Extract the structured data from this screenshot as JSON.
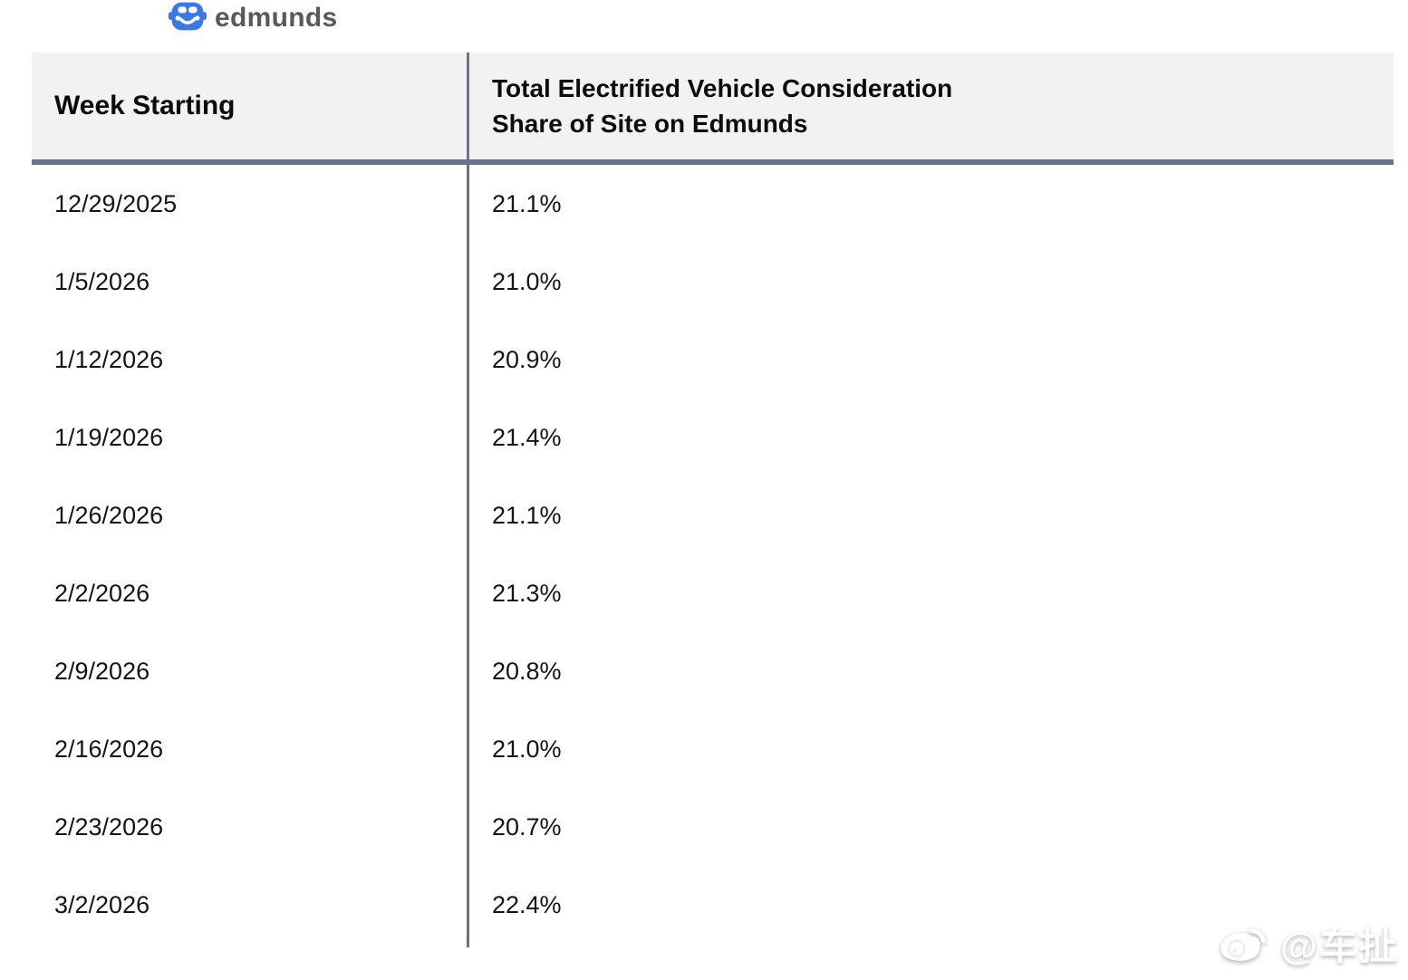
{
  "brand": {
    "name": "edmunds",
    "logo_icon": "car-icon",
    "logo_color": "#3B78E5",
    "wordmark_color": "#58595B"
  },
  "colors": {
    "background": "#FFFFFF",
    "header_bg": "#F2F2F2",
    "table_line": "#68748A",
    "row_text": "#141414",
    "watermark": "#FFFFFF"
  },
  "chart_data": {
    "type": "table",
    "title": "Total Electrified Vehicle Consideration Share of Site on Edmunds",
    "header": {
      "col1": "Week Starting",
      "col2_line1": "Total Electrified Vehicle Consideration",
      "col2_line2": "Share of Site on Edmunds"
    },
    "columns": [
      "Week Starting",
      "Total Electrified Vehicle Consideration Share of Site on Edmunds"
    ],
    "rows": [
      {
        "week_starting": "12/29/2025",
        "share": "21.1%",
        "share_value": 21.1
      },
      {
        "week_starting": "1/5/2026",
        "share": "21.0%",
        "share_value": 21.0
      },
      {
        "week_starting": "1/12/2026",
        "share": "20.9%",
        "share_value": 20.9
      },
      {
        "week_starting": "1/19/2026",
        "share": "21.4%",
        "share_value": 21.4
      },
      {
        "week_starting": "1/26/2026",
        "share": "21.1%",
        "share_value": 21.1
      },
      {
        "week_starting": "2/2/2026",
        "share": "21.3%",
        "share_value": 21.3
      },
      {
        "week_starting": "2/9/2026",
        "share": "20.8%",
        "share_value": 20.8
      },
      {
        "week_starting": "2/16/2026",
        "share": "21.0%",
        "share_value": 21.0
      },
      {
        "week_starting": "2/23/2026",
        "share": "20.7%",
        "share_value": 20.7
      },
      {
        "week_starting": "3/2/2026",
        "share": "22.4%",
        "share_value": 22.4
      }
    ]
  },
  "watermark": {
    "text": "@车扯",
    "icon": "weibo-icon"
  }
}
